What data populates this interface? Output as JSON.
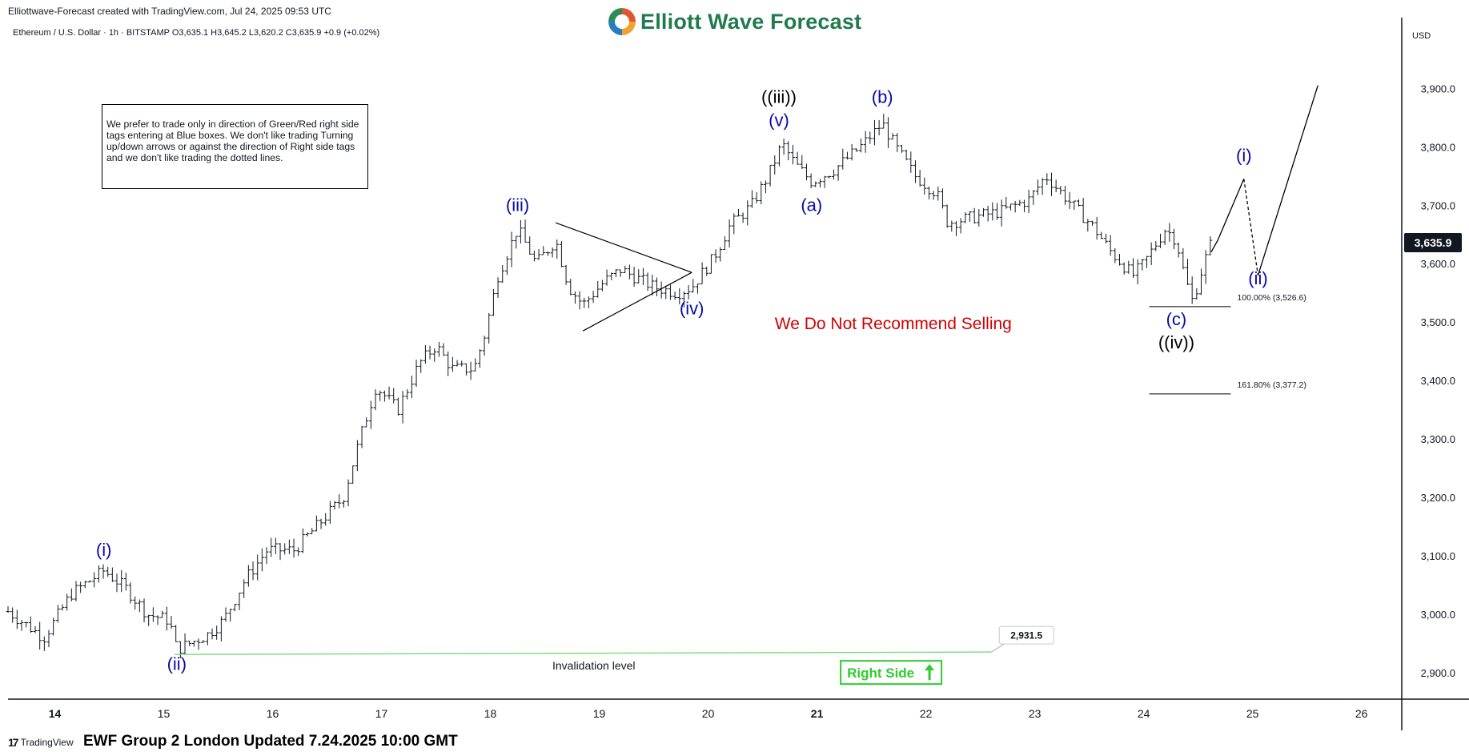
{
  "header": {
    "created_text": "Elliottwave-Forecast created with TradingView.com, Jul 24, 2025 09:53 UTC",
    "symbol_line": "Ethereum / U.S. Dollar · 1h · BITSTAMP  O3,635.1  H3,645.2  L3,620.2  C3,635.9  +0.9 (+0.02%)"
  },
  "logo": {
    "text": "Elliott Wave Forecast"
  },
  "note_box": {
    "text": "We prefer to trade only in direction of Green/Red right side tags entering at Blue boxes. We don't like trading Turning up/down arrows or against the direction of Right side tags and we don't like trading the dotted lines."
  },
  "footer": {
    "tradingview_label": "TradingView",
    "updated_text": "EWF Group 2 London Updated 7.24.2025 10:00 GMT"
  },
  "colors": {
    "wave_blue": "#0a0aa8",
    "wave_black": "#000000",
    "warning_red": "#d10000",
    "right_side_green": "#2ecc2e",
    "invalidation_green": "#7cd67c",
    "candle": "#131722",
    "background": "#ffffff"
  },
  "chart_data": {
    "type": "ohlc",
    "currency": "USD",
    "last_price_label": "3,635.9",
    "ylim": [
      2855,
      4010
    ],
    "yticks": [
      {
        "v": 3900,
        "label": "3,900.0"
      },
      {
        "v": 3800,
        "label": "3,800.0"
      },
      {
        "v": 3700,
        "label": "3,700.0"
      },
      {
        "v": 3600,
        "label": "3,600.0"
      },
      {
        "v": 3500,
        "label": "3,500.0"
      },
      {
        "v": 3400,
        "label": "3,400.0"
      },
      {
        "v": 3300,
        "label": "3,300.0"
      },
      {
        "v": 3200,
        "label": "3,200.0"
      },
      {
        "v": 3100,
        "label": "3,100.0"
      },
      {
        "v": 3000,
        "label": "3,000.0"
      },
      {
        "v": 2900,
        "label": "2,900.0"
      }
    ],
    "xlim": [
      13.57,
      26.37
    ],
    "xticks": [
      {
        "v": 14,
        "label": "14",
        "bold": true
      },
      {
        "v": 15,
        "label": "15"
      },
      {
        "v": 16,
        "label": "16"
      },
      {
        "v": 17,
        "label": "17"
      },
      {
        "v": 18,
        "label": "18"
      },
      {
        "v": 19,
        "label": "19"
      },
      {
        "v": 20,
        "label": "20"
      },
      {
        "v": 21,
        "label": "21",
        "bold": true
      },
      {
        "v": 22,
        "label": "22"
      },
      {
        "v": 23,
        "label": "23"
      },
      {
        "v": 24,
        "label": "24"
      },
      {
        "v": 25,
        "label": "25"
      },
      {
        "v": 26,
        "label": "26"
      }
    ],
    "price_path": [
      [
        13.57,
        3005
      ],
      [
        13.9,
        2960
      ],
      [
        14.15,
        3035
      ],
      [
        14.45,
        3075
      ],
      [
        14.65,
        3045
      ],
      [
        14.85,
        3000
      ],
      [
        15.05,
        2990
      ],
      [
        15.12,
        2940
      ],
      [
        15.4,
        2965
      ],
      [
        15.55,
        2990
      ],
      [
        15.75,
        3060
      ],
      [
        15.95,
        3110
      ],
      [
        16.2,
        3110
      ],
      [
        16.45,
        3160
      ],
      [
        16.65,
        3200
      ],
      [
        16.8,
        3300
      ],
      [
        16.95,
        3390
      ],
      [
        17.15,
        3350
      ],
      [
        17.35,
        3430
      ],
      [
        17.5,
        3460
      ],
      [
        17.65,
        3420
      ],
      [
        17.85,
        3420
      ],
      [
        17.95,
        3480
      ],
      [
        18.07,
        3580
      ],
      [
        18.25,
        3660
      ],
      [
        18.42,
        3600
      ],
      [
        18.6,
        3640
      ],
      [
        18.72,
        3560
      ],
      [
        18.85,
        3530
      ],
      [
        19.05,
        3570
      ],
      [
        19.2,
        3590
      ],
      [
        19.5,
        3560
      ],
      [
        19.72,
        3550
      ],
      [
        19.85,
        3560
      ],
      [
        20.05,
        3610
      ],
      [
        20.2,
        3665
      ],
      [
        20.4,
        3700
      ],
      [
        20.55,
        3750
      ],
      [
        20.68,
        3805
      ],
      [
        20.8,
        3770
      ],
      [
        20.95,
        3740
      ],
      [
        21.15,
        3760
      ],
      [
        21.4,
        3800
      ],
      [
        21.6,
        3840
      ],
      [
        21.72,
        3800
      ],
      [
        21.9,
        3750
      ],
      [
        22.1,
        3720
      ],
      [
        22.2,
        3670
      ],
      [
        22.45,
        3680
      ],
      [
        22.7,
        3690
      ],
      [
        22.95,
        3710
      ],
      [
        23.1,
        3750
      ],
      [
        23.3,
        3710
      ],
      [
        23.55,
        3660
      ],
      [
        23.7,
        3620
      ],
      [
        23.9,
        3580
      ],
      [
        24.0,
        3600
      ],
      [
        24.2,
        3660
      ],
      [
        24.3,
        3640
      ],
      [
        24.38,
        3575
      ],
      [
        24.45,
        3535
      ],
      [
        24.55,
        3600
      ],
      [
        24.62,
        3635.9
      ]
    ],
    "projection": {
      "solid_up": [
        [
          24.62,
          3620
        ],
        [
          24.68,
          3640
        ],
        [
          24.92,
          3745
        ]
      ],
      "dashed_down": [
        [
          24.92,
          3745
        ],
        [
          25.05,
          3580
        ]
      ],
      "solid_up2": [
        [
          25.05,
          3580
        ],
        [
          25.6,
          3905
        ]
      ]
    },
    "triangle": [
      [
        18.6,
        3670
      ],
      [
        19.85,
        3585
      ],
      [
        18.85,
        3485
      ]
    ],
    "fib_levels": [
      {
        "y": 3526.6,
        "x1": 24.05,
        "x2": 24.8,
        "label": "100.00% (3,526.6)"
      },
      {
        "y": 3377.2,
        "x1": 24.05,
        "x2": 24.8,
        "label": "161.80% (3,377.2)"
      }
    ],
    "invalidation": {
      "y": 2931.5,
      "x1": 15.1,
      "x2": 22.6,
      "label": "Invalidation level",
      "price_tag": "2,931.5"
    },
    "wave_labels": [
      {
        "text": "(i)",
        "x": 14.45,
        "y": 3100,
        "color": "blue"
      },
      {
        "text": "(ii)",
        "x": 15.12,
        "y": 2905,
        "color": "blue"
      },
      {
        "text": "(iii)",
        "x": 18.25,
        "y": 3690,
        "color": "blue"
      },
      {
        "text": "(iv)",
        "x": 19.85,
        "y": 3513,
        "color": "blue"
      },
      {
        "text": "((iii))",
        "x": 20.65,
        "y": 3875,
        "color": "black"
      },
      {
        "text": "(v)",
        "x": 20.65,
        "y": 3835,
        "color": "blue"
      },
      {
        "text": "(a)",
        "x": 20.95,
        "y": 3690,
        "color": "blue"
      },
      {
        "text": "(b)",
        "x": 21.6,
        "y": 3875,
        "color": "blue"
      },
      {
        "text": "(c)",
        "x": 24.3,
        "y": 3495,
        "color": "blue"
      },
      {
        "text": "((iv))",
        "x": 24.3,
        "y": 3455,
        "color": "black"
      },
      {
        "text": "(i)",
        "x": 24.92,
        "y": 3775,
        "color": "blue"
      },
      {
        "text": "(ii)",
        "x": 25.05,
        "y": 3565,
        "color": "blue"
      }
    ],
    "annotation": {
      "text": "We Do Not Recommend Selling",
      "x": 21.7,
      "y": 3488
    },
    "right_side_tag": {
      "text": "Right Side",
      "arrow": "up-arrow",
      "x": 21.68,
      "y": 2900
    }
  }
}
